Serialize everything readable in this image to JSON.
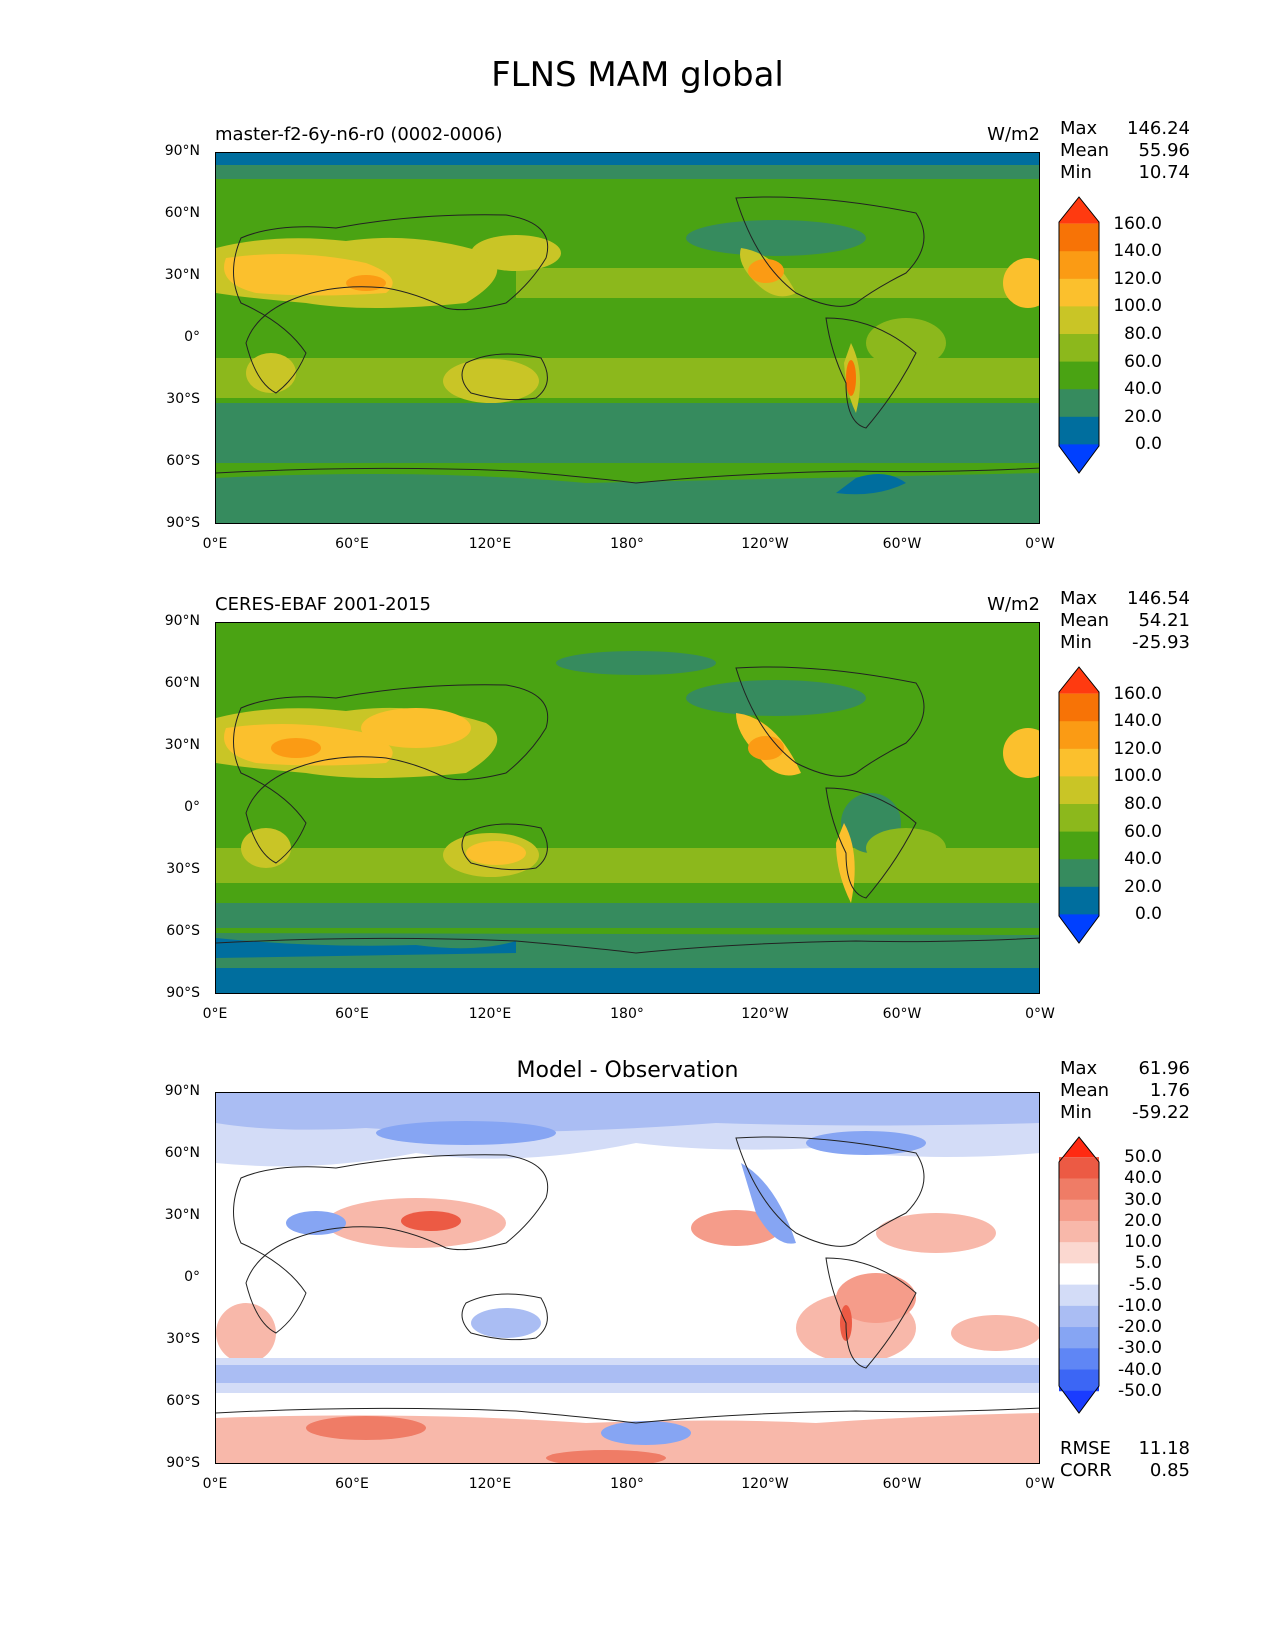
{
  "figure": {
    "title": "FLNS MAM global"
  },
  "axes": {
    "y_ticks": [
      "90°N",
      "60°N",
      "30°N",
      "0°",
      "30°S",
      "60°S",
      "90°S"
    ],
    "x_ticks": [
      "0°E",
      "60°E",
      "120°E",
      "180°",
      "120°W",
      "60°W",
      "0°W"
    ]
  },
  "panels": [
    {
      "left_title": "master-f2-6y-n6-r0 (0002-0006)",
      "units": "W/m2",
      "stats": [
        {
          "label": "Max",
          "value": "146.24"
        },
        {
          "label": "Mean",
          "value": "55.96"
        },
        {
          "label": "Min",
          "value": "10.74"
        }
      ]
    },
    {
      "left_title": "CERES-EBAF 2001-2015",
      "units": "W/m2",
      "stats": [
        {
          "label": "Max",
          "value": "146.54"
        },
        {
          "label": "Mean",
          "value": "54.21"
        },
        {
          "label": "Min",
          "value": "-25.93"
        }
      ]
    },
    {
      "center_title": "Model - Observation",
      "stats": [
        {
          "label": "Max",
          "value": "61.96"
        },
        {
          "label": "Mean",
          "value": "1.76"
        },
        {
          "label": "Min",
          "value": "-59.22"
        }
      ],
      "metrics": [
        {
          "label": "RMSE",
          "value": "11.18"
        },
        {
          "label": "CORR",
          "value": "0.85"
        }
      ]
    }
  ],
  "colorbars": {
    "field": {
      "colors": [
        "#0040ff",
        "#006e9e",
        "#368b5e",
        "#4aa313",
        "#8cb81c",
        "#c9c526",
        "#fbc02d",
        "#fb9b14",
        "#f77306",
        "#ff3a10"
      ],
      "labels": [
        "0.0",
        "20.0",
        "40.0",
        "60.0",
        "80.0",
        "100.0",
        "120.0",
        "140.0",
        "160.0"
      ]
    },
    "diff": {
      "colors": [
        "#1a3cff",
        "#3c66f5",
        "#5f86f5",
        "#86a5f3",
        "#aabdf3",
        "#d3dcf7",
        "#ffffff",
        "#fbd8d0",
        "#f8b8aa",
        "#f59c8a",
        "#ef7c66",
        "#ec5a44",
        "#ff2a12"
      ],
      "labels": [
        "-50.0",
        "-40.0",
        "-30.0",
        "-20.0",
        "-10.0",
        "-5.0",
        "5.0",
        "10.0",
        "20.0",
        "30.0",
        "40.0",
        "50.0"
      ]
    }
  }
}
